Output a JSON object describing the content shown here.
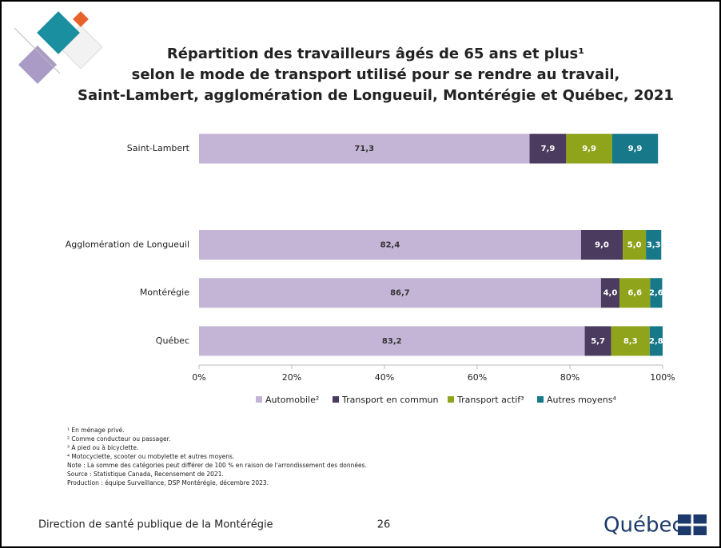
{
  "chart_data": {
    "type": "stacked-barh",
    "title": [
      "Répartition des travailleurs âgés de 65 ans et plus¹",
      "selon le mode de transport utilisé pour se rendre au travail,",
      "Saint-Lambert, agglomération de Longueuil, Montérégie et Québec, 2021"
    ],
    "categories": [
      "Saint-Lambert",
      null,
      "Agglomération de Longueuil",
      "Montérégie",
      "Québec"
    ],
    "series": [
      {
        "name": "Automobile²",
        "color": "#c4b5d6",
        "label_color": "#333333",
        "values": [
          71.3,
          null,
          82.4,
          86.7,
          83.2
        ],
        "value_labels": [
          "71,3",
          null,
          "82,4",
          "86,7",
          "83,2"
        ]
      },
      {
        "name": "Transport en commun",
        "color": "#4b3b5f",
        "label_color": "#ffffff",
        "values": [
          7.9,
          null,
          9.0,
          4.0,
          5.7
        ],
        "value_labels": [
          "7,9",
          null,
          "9,0",
          "4,0",
          "5,7"
        ]
      },
      {
        "name": "Transport actif³",
        "color": "#8fa31b",
        "label_color": "#ffffff",
        "values": [
          9.9,
          null,
          5.0,
          6.6,
          8.3
        ],
        "value_labels": [
          "9,9",
          null,
          "5,0",
          "6,6",
          "8,3"
        ]
      },
      {
        "name": "Autres moyens⁴",
        "color": "#17788a",
        "label_color": "#ffffff",
        "values": [
          9.9,
          null,
          3.3,
          2.6,
          2.8
        ],
        "value_labels": [
          "9,9",
          null,
          "3,3",
          "2,6",
          "2,8"
        ]
      }
    ],
    "xlim": [
      0,
      100
    ],
    "xticks": [
      {
        "value": 0,
        "label": "0%"
      },
      {
        "value": 20,
        "label": "20%"
      },
      {
        "value": 40,
        "label": "40%"
      },
      {
        "value": 60,
        "label": "60%"
      },
      {
        "value": 80,
        "label": "80%"
      },
      {
        "value": 100,
        "label": "100%"
      }
    ],
    "legend": "bottom"
  },
  "footnotes": [
    "¹ En ménage privé.",
    "² Comme conducteur ou passager.",
    "³ À pied ou à bicyclette.",
    "⁴ Motocyclette, scooter ou mobylette et autres moyens.",
    "Note : La somme des catégories peut différer de 100 % en raison de l'arrondissement des données.",
    "Source : Statistique Canada, Recensement de 2021.",
    "Production : équipe Surveillance, DSP Montérégie, décembre 2023."
  ],
  "footer": {
    "left": "Direction de santé publique de la Montérégie",
    "page": "26",
    "logo": "Québec"
  }
}
